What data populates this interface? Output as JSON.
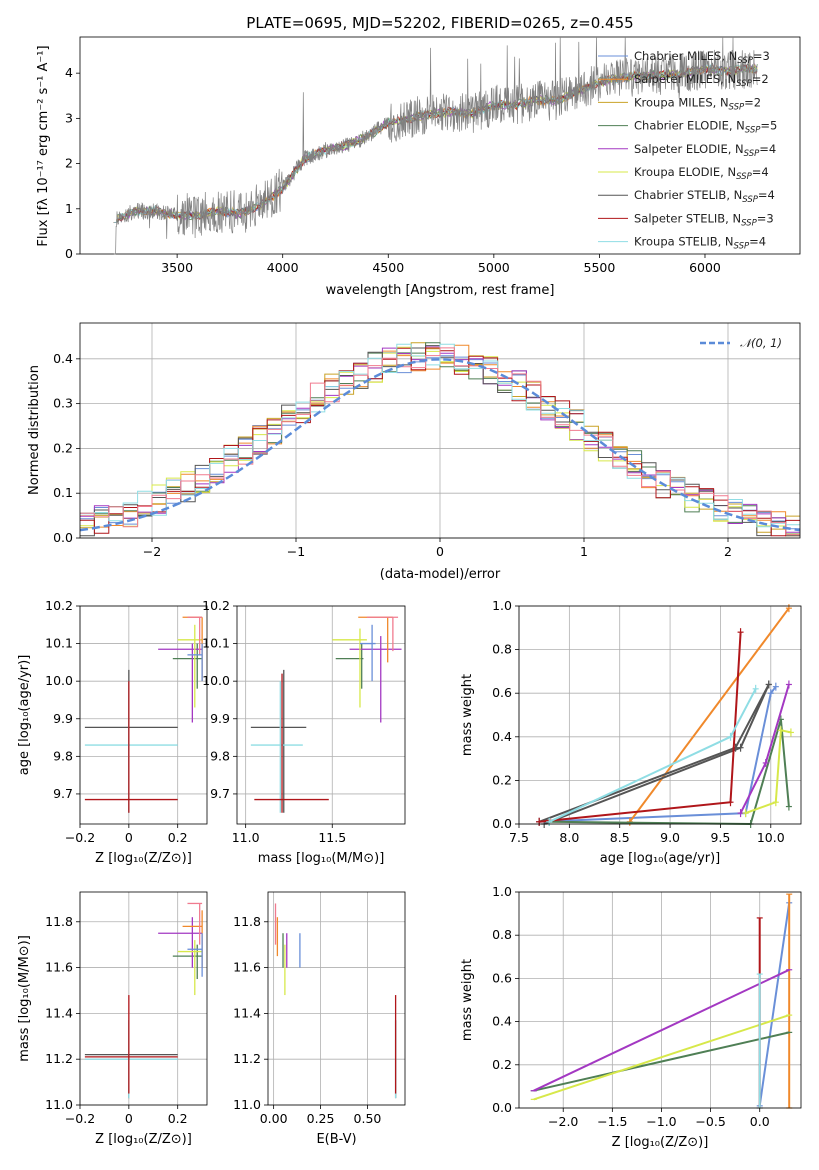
{
  "title": "PLATE=0695, MJD=52202, FIBERID=0265, z=0.455",
  "legend": [
    {
      "name": "Chabrier MILES, N",
      "sub": "SSP",
      "suffix": "=3",
      "color": "#6a8fd8"
    },
    {
      "name": "Salpeter MILES, N",
      "sub": "SSP",
      "suffix": "=2",
      "color": "#f0892b"
    },
    {
      "name": "Kroupa MILES, N",
      "sub": "SSP",
      "suffix": "=2",
      "color": "#c9a227"
    },
    {
      "name": "Chabrier ELODIE, N",
      "sub": "SSP",
      "suffix": "=5",
      "color": "#4f7f55"
    },
    {
      "name": "Salpeter ELODIE, N",
      "sub": "SSP",
      "suffix": "=4",
      "color": "#a338c2"
    },
    {
      "name": "Kroupa ELODIE, N",
      "sub": "SSP",
      "suffix": "=4",
      "color": "#d7e84a"
    },
    {
      "name": "Chabrier STELIB, N",
      "sub": "SSP",
      "suffix": "=4",
      "color": "#555555"
    },
    {
      "name": "Salpeter STELIB, N",
      "sub": "SSP",
      "suffix": "=3",
      "color": "#b0161a"
    },
    {
      "name": "Kroupa STELIB, N",
      "sub": "SSP",
      "suffix": "=4",
      "color": "#8fdde4"
    }
  ],
  "chart_data": [
    {
      "type": "line",
      "id": "spectrum",
      "xlabel": "wavelength [Angstrom, rest frame]",
      "ylabel": "Flux [fλ 10⁻¹⁷ erg cm⁻² s⁻¹ A⁻¹]",
      "xlim": [
        3040,
        6450
      ],
      "ylim": [
        0,
        4.8
      ],
      "xticks": [
        3500,
        4000,
        4500,
        5000,
        5500,
        6000
      ],
      "yticks": [
        0,
        1,
        2,
        3,
        4
      ],
      "series": [
        {
          "color": "#808080",
          "x": [
            3200,
            3300,
            3400,
            3500,
            3600,
            3700,
            3800,
            3900,
            4000,
            4100,
            4200,
            4300,
            4400,
            4500,
            4600,
            4700,
            4800,
            4900,
            5000,
            5100,
            5200,
            5300,
            5400,
            5500,
            5600,
            5700,
            5800,
            5900,
            6000,
            6100,
            6200,
            6250
          ],
          "y": [
            0.75,
            0.95,
            0.95,
            0.85,
            0.85,
            0.95,
            0.9,
            1.1,
            1.45,
            2.1,
            2.3,
            2.4,
            2.6,
            2.9,
            3.0,
            3.1,
            3.15,
            3.1,
            3.3,
            3.3,
            3.4,
            3.4,
            3.6,
            3.8,
            3.9,
            3.95,
            3.95,
            4.0,
            4.1,
            4.05,
            4.1,
            4.1
          ]
        }
      ]
    },
    {
      "type": "line",
      "id": "residuals",
      "xlabel": "(data-model)/error",
      "ylabel": "Normed distribution",
      "xlim": [
        -2.5,
        2.5
      ],
      "ylim": [
        0,
        0.48
      ],
      "xticks": [
        -2,
        -1,
        0,
        1,
        2
      ],
      "yticks": [
        0,
        0.1,
        0.2,
        0.3,
        0.4
      ],
      "legend_label": "𝒩(0, 1)",
      "series": [
        {
          "name": "N(0,1)",
          "x": [
            -2.5,
            -2.0,
            -1.5,
            -1.0,
            -0.5,
            0,
            0.5,
            1.0,
            1.5,
            2.0,
            2.5
          ],
          "y": [
            0.018,
            0.054,
            0.13,
            0.242,
            0.352,
            0.399,
            0.352,
            0.242,
            0.13,
            0.054,
            0.018
          ]
        }
      ]
    },
    {
      "type": "scatter",
      "id": "age-vs-Z",
      "xlabel": "Z [log₁₀(Z/Z⊙)]",
      "ylabel": "age [log₁₀(age/yr)]",
      "xlim": [
        -0.2,
        0.32
      ],
      "ylim": [
        9.62,
        10.2
      ],
      "xticks": [
        -0.2,
        0,
        0.2
      ],
      "yticks": [
        9.7,
        9.8,
        9.9,
        10.0,
        10.1,
        10.2
      ]
    },
    {
      "type": "scatter",
      "id": "age-vs-mass",
      "xlabel": "mass [log₁₀(M/M⊙)]",
      "ylabel": "",
      "xlim": [
        10.95,
        11.92
      ],
      "ylim": [
        9.62,
        10.2
      ],
      "xticks": [
        11.0,
        11.5
      ],
      "yticks": [
        9.7,
        9.8,
        9.9,
        10.0,
        10.1,
        10.2
      ]
    },
    {
      "type": "line",
      "id": "weight-vs-age",
      "xlabel": "age [log₁₀(age/yr)]",
      "ylabel": "mass weight",
      "xlim": [
        7.5,
        10.3
      ],
      "ylim": [
        0,
        1
      ],
      "xticks": [
        7.5,
        8.0,
        8.5,
        9.0,
        9.5,
        10.0
      ],
      "yticks": [
        0,
        0.2,
        0.4,
        0.6,
        0.8,
        1.0
      ]
    },
    {
      "type": "scatter",
      "id": "mass-vs-Z",
      "xlabel": "Z [log₁₀(Z/Z⊙)]",
      "ylabel": "mass [log₁₀(M/M⊙)]",
      "xlim": [
        -0.2,
        0.32
      ],
      "ylim": [
        11.0,
        11.93
      ],
      "xticks": [
        -0.2,
        0,
        0.2
      ],
      "yticks": [
        11.0,
        11.2,
        11.4,
        11.6,
        11.8
      ]
    },
    {
      "type": "scatter",
      "id": "mass-vs-ebv",
      "xlabel": "E(B-V)",
      "ylabel": "",
      "xlim": [
        -0.03,
        0.7
      ],
      "ylim": [
        11.0,
        11.93
      ],
      "xticks": [
        0,
        0.25,
        0.5
      ],
      "yticks": [
        11.0,
        11.2,
        11.4,
        11.6,
        11.8
      ]
    },
    {
      "type": "line",
      "id": "weight-vs-Z",
      "xlabel": "Z [log₁₀(Z/Z⊙)]",
      "ylabel": "mass weight",
      "xlim": [
        -2.45,
        0.42
      ],
      "ylim": [
        0,
        1
      ],
      "xticks": [
        -2.0,
        -1.5,
        -1.0,
        -0.5,
        0.0
      ],
      "yticks": [
        0,
        0.2,
        0.4,
        0.6,
        0.8,
        1.0
      ]
    }
  ]
}
